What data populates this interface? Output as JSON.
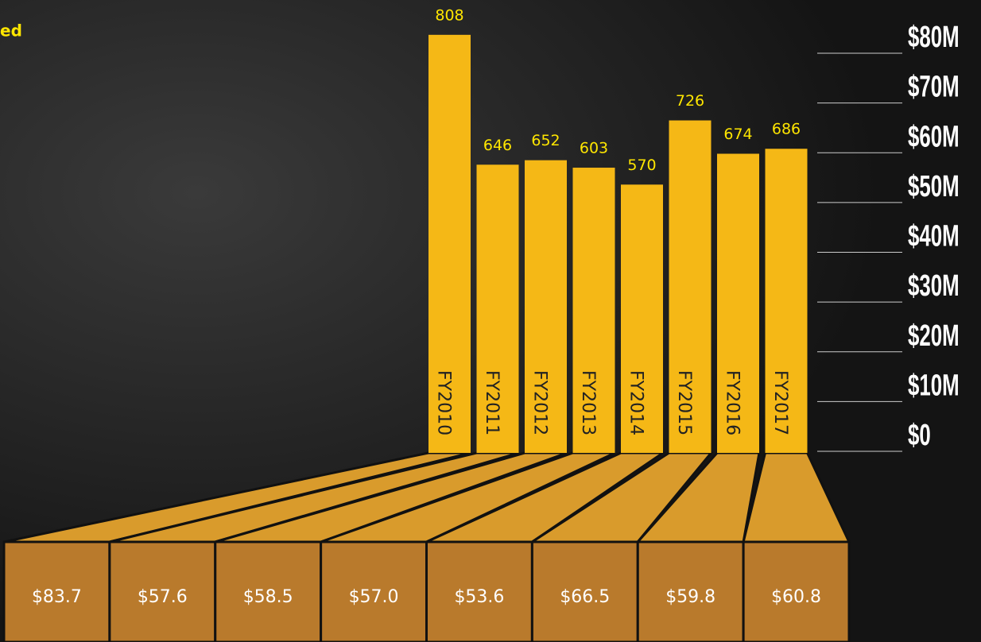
{
  "title_fragment": "ed",
  "chart_data": {
    "type": "bar",
    "categories": [
      "FY2010",
      "FY2011",
      "FY2012",
      "FY2013",
      "FY2014",
      "FY2015",
      "FY2016",
      "FY2017"
    ],
    "values": [
      83.7,
      57.6,
      58.5,
      57.0,
      53.6,
      66.5,
      59.8,
      60.8
    ],
    "value_labels": [
      "$83.7",
      "$57.6",
      "$58.5",
      "$57.0",
      "$53.6",
      "$66.5",
      "$59.8",
      "$60.8"
    ],
    "counts": [
      808,
      646,
      652,
      603,
      570,
      726,
      674,
      686
    ],
    "color": "#f5b816",
    "ylim": [
      0,
      80
    ],
    "yticks": [
      {
        "value": 0,
        "label": "$0"
      },
      {
        "value": 10,
        "label": "$10M"
      },
      {
        "value": 20,
        "label": "$20M"
      },
      {
        "value": 30,
        "label": "$30M"
      },
      {
        "value": 40,
        "label": "$40M"
      },
      {
        "value": 50,
        "label": "$50M"
      },
      {
        "value": 60,
        "label": "$60M"
      },
      {
        "value": 70,
        "label": "$70M"
      },
      {
        "value": 80,
        "label": "$80M"
      }
    ]
  }
}
